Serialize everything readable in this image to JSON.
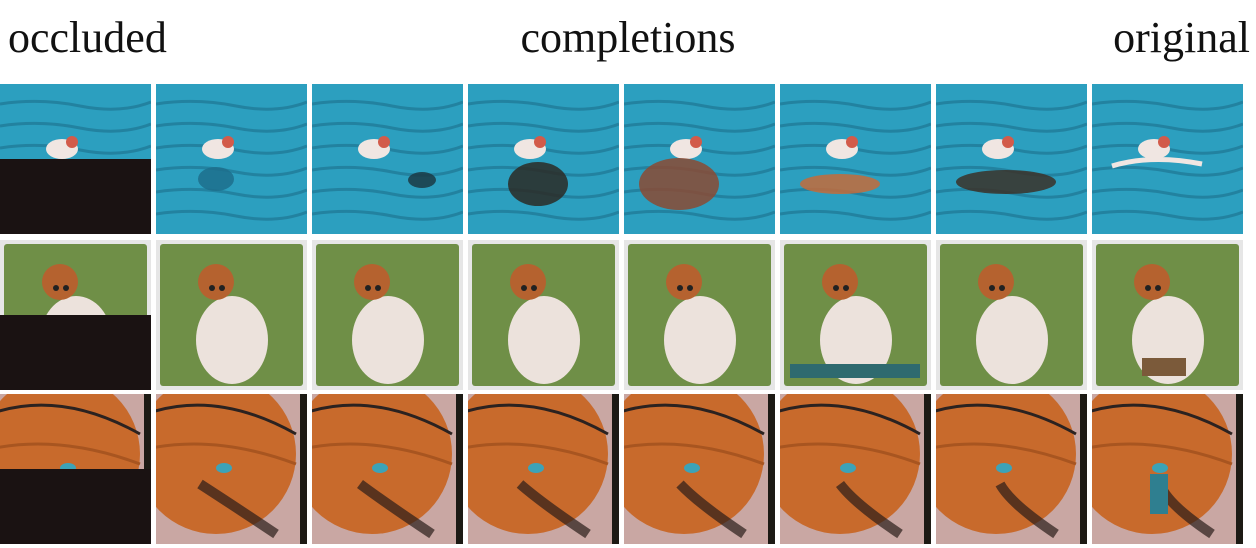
{
  "headers": {
    "occluded": "occluded",
    "completions": "completions",
    "original": "original"
  },
  "rows": [
    {
      "subject": "seabird on water",
      "palette": {
        "bg": "#2c9fbf",
        "dark": "#1d6f8c",
        "subject": "#f0e6e2",
        "accent": "#c46b3a"
      }
    },
    {
      "subject": "pomeranian dog on grass",
      "palette": {
        "bg": "#6f8f47",
        "dark": "#4e6b33",
        "subject": "#ece2dc",
        "accent": "#b5622f"
      }
    },
    {
      "subject": "basketball close-up",
      "palette": {
        "bg": "#c9a7a3",
        "dark": "#2b2220",
        "subject": "#c86a2c",
        "accent": "#3ca3b8"
      }
    }
  ],
  "columns": [
    "occluded",
    "completion-1",
    "completion-2",
    "completion-3",
    "completion-4",
    "completion-5",
    "completion-6",
    "original"
  ],
  "occlusion_color": "#1a1212"
}
